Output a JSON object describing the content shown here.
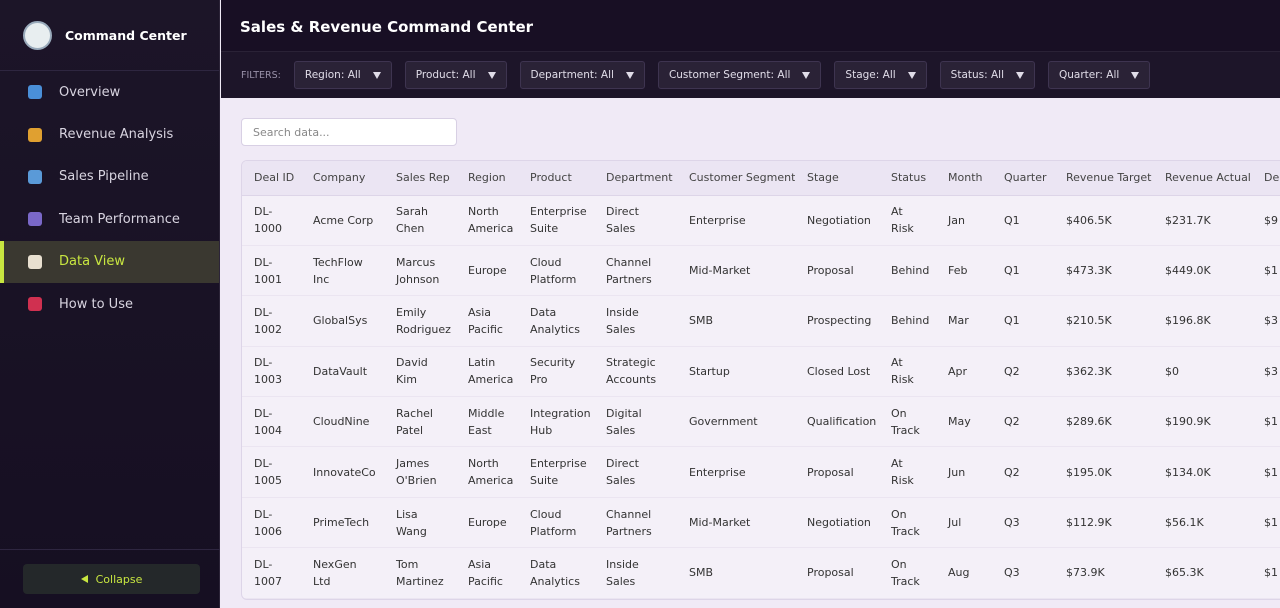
{
  "sidebar": {
    "brand": "Command Center",
    "nav": [
      "Overview",
      "Revenue Analysis",
      "Sales Pipeline",
      "Team Performance",
      "Data View",
      "How to Use"
    ],
    "collapse": "Collapse"
  },
  "header": {
    "title": "Sales & Revenue Command Center"
  },
  "filters": {
    "label": "FILTERS:",
    "items": [
      "Region: All",
      "Product: All",
      "Department: All",
      "Customer Segment: All",
      "Stage: All",
      "Status: All",
      "Quarter: All"
    ]
  },
  "search": {
    "placeholder": "Search data..."
  },
  "table": {
    "columns": [
      "Deal ID",
      "Company",
      "Sales Rep",
      "Region",
      "Product",
      "Department",
      "Customer Segment",
      "Stage",
      "Status",
      "Month",
      "Quarter",
      "Revenue Target",
      "Revenue Actual",
      "De"
    ],
    "rows": [
      [
        "DL-1000",
        "Acme Corp",
        "Sarah Chen",
        "North America",
        "Enterprise Suite",
        "Direct Sales",
        "Enterprise",
        "Negotiation",
        "At Risk",
        "Jan",
        "Q1",
        "$406.5K",
        "$231.7K",
        "$9"
      ],
      [
        "DL-1001",
        "TechFlow Inc",
        "Marcus Johnson",
        "Europe",
        "Cloud Platform",
        "Channel Partners",
        "Mid-Market",
        "Proposal",
        "Behind",
        "Feb",
        "Q1",
        "$473.3K",
        "$449.0K",
        "$1"
      ],
      [
        "DL-1002",
        "GlobalSys",
        "Emily Rodriguez",
        "Asia Pacific",
        "Data Analytics",
        "Inside Sales",
        "SMB",
        "Prospecting",
        "Behind",
        "Mar",
        "Q1",
        "$210.5K",
        "$196.8K",
        "$3"
      ],
      [
        "DL-1003",
        "DataVault",
        "David Kim",
        "Latin America",
        "Security Pro",
        "Strategic Accounts",
        "Startup",
        "Closed Lost",
        "At Risk",
        "Apr",
        "Q2",
        "$362.3K",
        "$0",
        "$3"
      ],
      [
        "DL-1004",
        "CloudNine",
        "Rachel Patel",
        "Middle East",
        "Integration Hub",
        "Digital Sales",
        "Government",
        "Qualification",
        "On Track",
        "May",
        "Q2",
        "$289.6K",
        "$190.9K",
        "$1"
      ],
      [
        "DL-1005",
        "InnovateCo",
        "James O'Brien",
        "North America",
        "Enterprise Suite",
        "Direct Sales",
        "Enterprise",
        "Proposal",
        "At Risk",
        "Jun",
        "Q2",
        "$195.0K",
        "$134.0K",
        "$1"
      ],
      [
        "DL-1006",
        "PrimeTech",
        "Lisa Wang",
        "Europe",
        "Cloud Platform",
        "Channel Partners",
        "Mid-Market",
        "Negotiation",
        "On Track",
        "Jul",
        "Q3",
        "$112.9K",
        "$56.1K",
        "$1"
      ],
      [
        "DL-1007",
        "NexGen Ltd",
        "Tom Martinez",
        "Asia Pacific",
        "Data Analytics",
        "Inside Sales",
        "SMB",
        "Proposal",
        "On Track",
        "Aug",
        "Q3",
        "$73.9K",
        "$65.3K",
        "$1"
      ]
    ]
  }
}
